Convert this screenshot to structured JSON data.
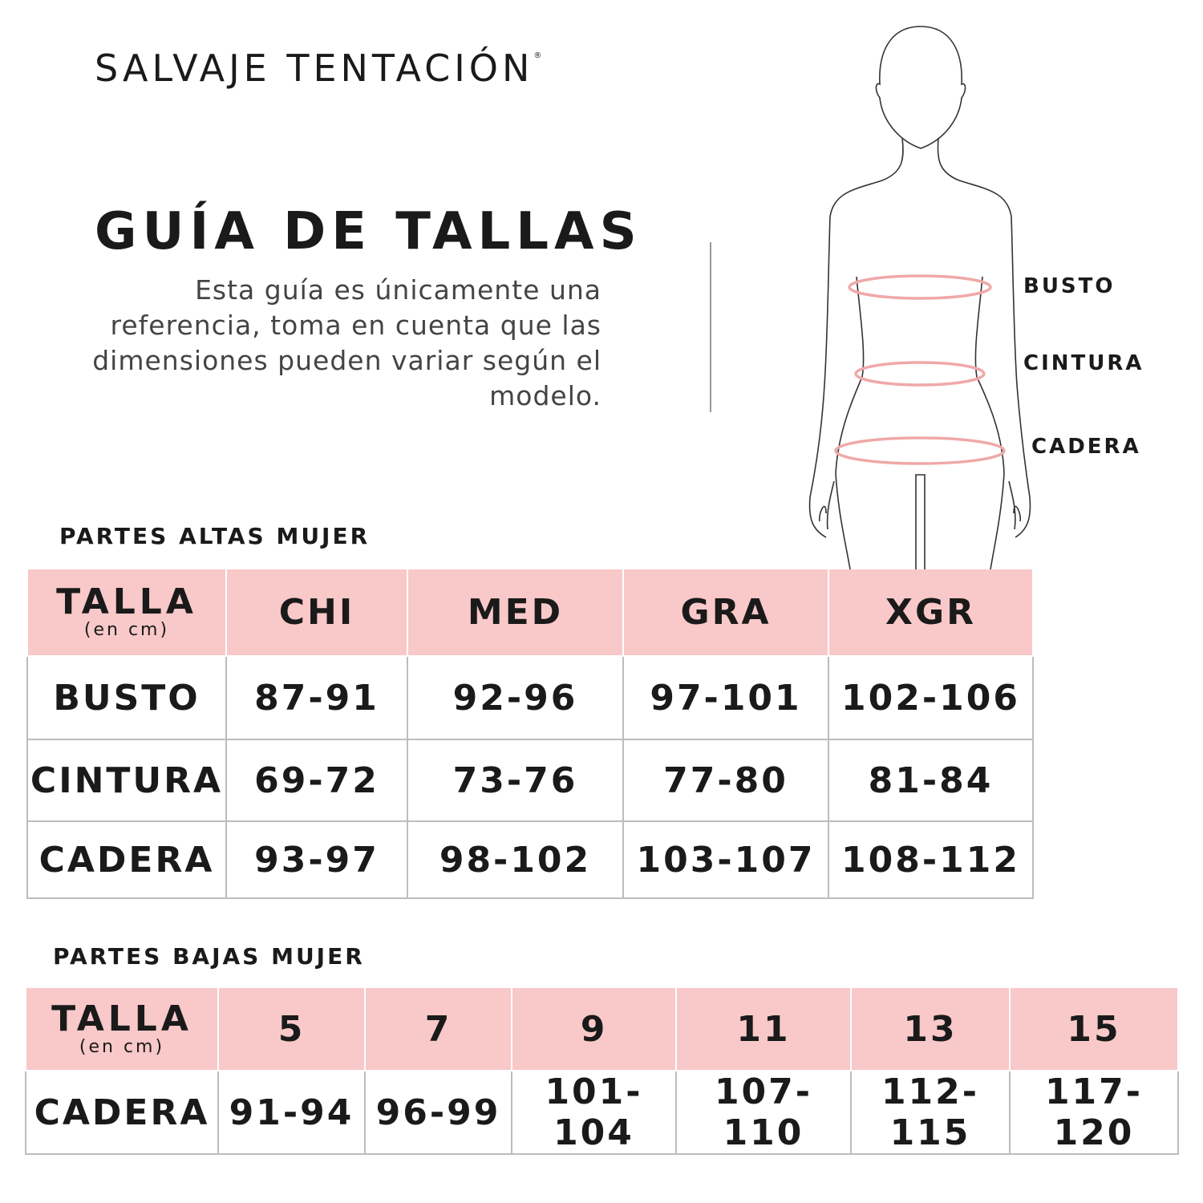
{
  "brand": {
    "name": "SALVAJE TENTACIÓN",
    "mark": "®"
  },
  "title": "GUÍA DE TALLAS",
  "description": "Esta guía es únicamente una referencia, toma en cuenta que las dimensiones pueden variar según el modelo.",
  "figure": {
    "labels": [
      "BUSTO",
      "CINTURA",
      "CADERA"
    ],
    "band_color": "#f0a8a8"
  },
  "colors": {
    "header_bg": "#f9c8c8",
    "grid": "#bdbdbd"
  },
  "tops": {
    "heading": "PARTES ALTAS MUJER",
    "talla": "TALLA",
    "unit": "(en cm)",
    "columns": [
      "CHI",
      "MED",
      "GRA",
      "XGR"
    ],
    "rows": [
      {
        "label": "BUSTO",
        "values": [
          "87-91",
          "92-96",
          "97-101",
          "102-106"
        ]
      },
      {
        "label": "CINTURA",
        "values": [
          "69-72",
          "73-76",
          "77-80",
          "81-84"
        ]
      },
      {
        "label": "CADERA",
        "values": [
          "93-97",
          "98-102",
          "103-107",
          "108-112"
        ]
      }
    ]
  },
  "bottoms": {
    "heading": "PARTES BAJAS MUJER",
    "talla": "TALLA",
    "unit": "(en cm)",
    "columns": [
      "5",
      "7",
      "9",
      "11",
      "13",
      "15"
    ],
    "rows": [
      {
        "label": "CADERA",
        "values": [
          "91-94",
          "96-99",
          "101-104",
          "107-110",
          "112-115",
          "117-120"
        ]
      }
    ]
  }
}
